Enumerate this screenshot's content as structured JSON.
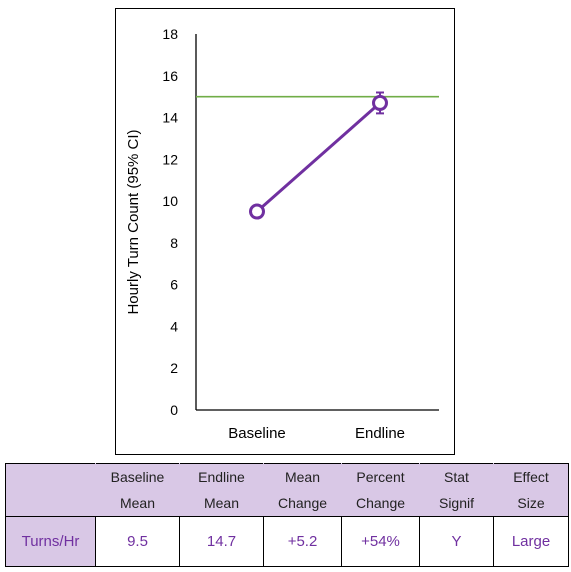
{
  "chart_data": {
    "type": "line",
    "categories": [
      "Baseline",
      "Endline"
    ],
    "series": [
      {
        "values": [
          9.5,
          14.7
        ],
        "ci_low": [
          9.3,
          14.2
        ],
        "ci_high": [
          9.7,
          15.2
        ],
        "color": "#7030a0"
      }
    ],
    "reference_line": {
      "value": 15,
      "color": "#70ad47"
    },
    "ylabel": "Hourly Turn Count (95% CI)",
    "xlabel": "",
    "ylim": [
      0,
      18
    ],
    "yticks": [
      0,
      2,
      4,
      6,
      8,
      10,
      12,
      14,
      16,
      18
    ],
    "grid": false,
    "legend": "none"
  },
  "table": {
    "headers": [
      [
        "",
        ""
      ],
      [
        "Baseline",
        "Mean"
      ],
      [
        "Endline",
        "Mean"
      ],
      [
        "Mean",
        "Change"
      ],
      [
        "Percent",
        "Change"
      ],
      [
        "Stat",
        "Signif"
      ],
      [
        "Effect",
        "Size"
      ]
    ],
    "row": {
      "label": "Turns/Hr",
      "values": [
        "9.5",
        "14.7",
        "+5.2",
        "+54%",
        "Y",
        "Large"
      ]
    }
  },
  "colors": {
    "series": "#7030a0",
    "reference": "#70ad47",
    "header_fill": "#d9c8e6"
  }
}
